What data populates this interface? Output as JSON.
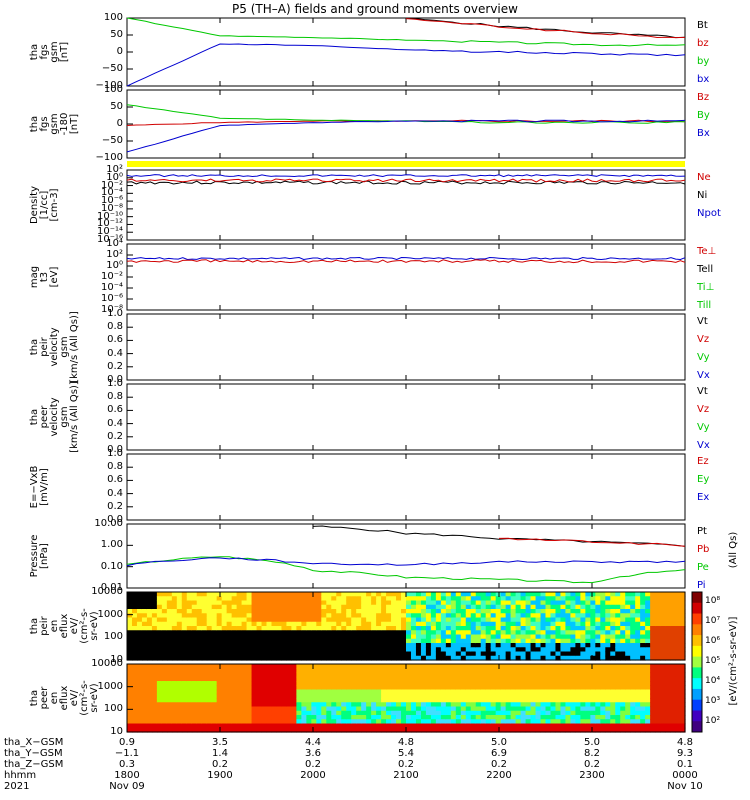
{
  "title": "P5 (TH–A) fields and ground moments overview",
  "panels": [
    {
      "id": "fgs",
      "ylabel": "tha\nfgs\ngsm\n[nT]",
      "yticks": [
        "100",
        "50",
        "0",
        "−50",
        "−100"
      ],
      "legend": [
        {
          "t": "Bt",
          "c": "#000000"
        },
        {
          "t": "bz",
          "c": "#d00000"
        },
        {
          "t": "by",
          "c": "#00c800"
        },
        {
          "t": "bx",
          "c": "#0000d0"
        }
      ]
    },
    {
      "id": "fgs2",
      "ylabel": "tha\nfgs\ngsm\n-180\n[nT]",
      "yticks": [
        "100",
        "50",
        "0",
        "−50",
        "−100"
      ],
      "legend": [
        {
          "t": "Bz",
          "c": "#d00000"
        },
        {
          "t": "By",
          "c": "#00c800"
        },
        {
          "t": "Bx",
          "c": "#0000d0"
        }
      ]
    },
    {
      "id": "dens",
      "ylabel": "Density\n[1/cc]\n[cm-3]",
      "yticks": [
        "10²",
        "10⁰",
        "10⁻²",
        "10⁻⁴",
        "10⁻⁶",
        "10⁻⁸",
        "10⁻¹⁰",
        "10⁻¹²",
        "10⁻¹⁴",
        "10⁻¹⁶"
      ],
      "legend": [
        {
          "t": "Ne",
          "c": "#d00000"
        },
        {
          "t": "Ni",
          "c": "#000000"
        },
        {
          "t": "Npot",
          "c": "#0000d0"
        }
      ]
    },
    {
      "id": "temp",
      "ylabel": "mag\nt3\n[eV]",
      "yticks": [
        "10⁴",
        "10²",
        "10⁰",
        "10⁻²",
        "10⁻⁴",
        "10⁻⁶",
        "10⁻⁸"
      ],
      "legend": [
        {
          "t": "Te⊥",
          "c": "#d00000"
        },
        {
          "t": "Tell",
          "c": "#000000"
        },
        {
          "t": "Ti⊥",
          "c": "#00c800"
        },
        {
          "t": "Till",
          "c": "#00c800"
        }
      ]
    },
    {
      "id": "vi",
      "ylabel": "tha\npeir\nvelocity\ngsm\n[km/s (All Qs)]",
      "yticks": [
        "1.0",
        "0.8",
        "0.6",
        "0.4",
        "0.2",
        "0.0"
      ],
      "legend": [
        {
          "t": "Vt",
          "c": "#000000"
        },
        {
          "t": "Vz",
          "c": "#d00000"
        },
        {
          "t": "Vy",
          "c": "#00c800"
        },
        {
          "t": "Vx",
          "c": "#0000d0"
        }
      ]
    },
    {
      "id": "ve",
      "ylabel": "tha\npeer\nvelocity\ngsm\n[km/s (All Qs)]",
      "yticks": [
        "1.0",
        "0.8",
        "0.6",
        "0.4",
        "0.2",
        "0.0"
      ],
      "legend": [
        {
          "t": "Vt",
          "c": "#000000"
        },
        {
          "t": "Vz",
          "c": "#d00000"
        },
        {
          "t": "Vy",
          "c": "#00c800"
        },
        {
          "t": "Vx",
          "c": "#0000d0"
        }
      ]
    },
    {
      "id": "ef",
      "ylabel": "E=−VxB\n[mV/m]",
      "yticks": [
        "1.0",
        "0.8",
        "0.6",
        "0.4",
        "0.2",
        "0.0"
      ],
      "legend": [
        {
          "t": "Ez",
          "c": "#d00000"
        },
        {
          "t": "Ey",
          "c": "#00c800"
        },
        {
          "t": "Ex",
          "c": "#0000d0"
        }
      ]
    },
    {
      "id": "pres",
      "ylabel": "Pressure\n[nPa]",
      "yticks": [
        "10.00",
        "1.00",
        "0.10",
        "0.01"
      ],
      "legend": [
        {
          "t": "Pt",
          "c": "#000000"
        },
        {
          "t": "Pb",
          "c": "#d00000"
        },
        {
          "t": "Pe",
          "c": "#00c800"
        },
        {
          "t": "Pi",
          "c": "#0000d0"
        }
      ],
      "rlabel": "(All Qs)"
    },
    {
      "id": "si",
      "ylabel": "tha\npeir\nen\neflux\neV/\n(cm²-s-\nsr-eV)",
      "yticks": [
        "10000",
        "1000",
        "100",
        "10"
      ]
    },
    {
      "id": "se",
      "ylabel": "tha\npeer\nen\neflux\neV/\n(cm²-s-\nsr-eV)",
      "yticks": [
        "10000",
        "1000",
        "100",
        "10"
      ]
    }
  ],
  "colorbar": {
    "label": "[eV/(cm²-s-sr-eV)]",
    "ticks": [
      "10⁸",
      "10⁷",
      "10⁶",
      "10⁵",
      "10⁴",
      "10³",
      "10²"
    ]
  },
  "xaxis": {
    "rows": [
      {
        "label": "tha_X−GSM",
        "vals": [
          "0.9",
          "3.5",
          "4.4",
          "4.8",
          "5.0",
          "5.0",
          "4.8"
        ]
      },
      {
        "label": "tha_Y−GSM",
        "vals": [
          "−1.1",
          "1.4",
          "3.6",
          "5.4",
          "6.9",
          "8.2",
          "9.3"
        ]
      },
      {
        "label": "tha_Z−GSM",
        "vals": [
          "0.3",
          "0.2",
          "0.2",
          "0.2",
          "0.2",
          "0.2",
          "0.1"
        ]
      },
      {
        "label": "hhmm",
        "vals": [
          "1800",
          "1900",
          "2000",
          "2100",
          "2200",
          "2300",
          "0000"
        ]
      },
      {
        "label": "2021",
        "vals": [
          "Nov 09",
          "",
          "",
          "",
          "",
          "",
          "Nov 10"
        ]
      }
    ]
  },
  "chart_data": [
    {
      "type": "line",
      "title": "P5 (TH–A) fields and ground moments overview",
      "panel": "fgs",
      "ylim": [
        -100,
        110
      ],
      "x": [
        "1800",
        "1900",
        "2000",
        "2100",
        "2200",
        "2300",
        "0000"
      ],
      "series": [
        {
          "name": "Bt",
          "values": [
            null,
            null,
            null,
            110,
            85,
            65,
            50
          ]
        },
        {
          "name": "bz",
          "values": [
            null,
            null,
            null,
            108,
            83,
            63,
            48
          ]
        },
        {
          "name": "by",
          "values": [
            110,
            55,
            50,
            42,
            35,
            28,
            25
          ]
        },
        {
          "name": "bx",
          "values": [
            -100,
            30,
            25,
            12,
            5,
            0,
            -5
          ]
        }
      ]
    },
    {
      "type": "line",
      "panel": "fgs2",
      "ylim": [
        -120,
        110
      ],
      "x": [
        "1800",
        "1900",
        "2000",
        "2100",
        "2200",
        "2300",
        "0000"
      ],
      "series": [
        {
          "name": "Bz",
          "values": [
            -10,
            0,
            5,
            5,
            5,
            5,
            5
          ]
        },
        {
          "name": "By",
          "values": [
            60,
            15,
            8,
            5,
            0,
            0,
            0
          ]
        },
        {
          "name": "Bx",
          "values": [
            -100,
            -10,
            0,
            5,
            5,
            5,
            5
          ]
        }
      ]
    },
    {
      "type": "line",
      "panel": "pres",
      "ylog": true,
      "ylim": [
        0.005,
        20
      ],
      "x": [
        "1800",
        "1900",
        "2000",
        "2100",
        "2200",
        "2300",
        "0000"
      ],
      "series": [
        {
          "name": "Pt",
          "values": [
            null,
            null,
            15,
            6,
            3,
            2,
            1.2
          ]
        },
        {
          "name": "Pb",
          "values": [
            null,
            null,
            null,
            null,
            3,
            2,
            1.2
          ]
        },
        {
          "name": "Pe",
          "values": [
            0.1,
            0.3,
            0.05,
            0.02,
            0.015,
            0.01,
            0.05
          ]
        },
        {
          "name": "Pi",
          "values": [
            0.1,
            0.25,
            0.12,
            0.1,
            0.15,
            0.15,
            0.15
          ]
        }
      ]
    }
  ]
}
